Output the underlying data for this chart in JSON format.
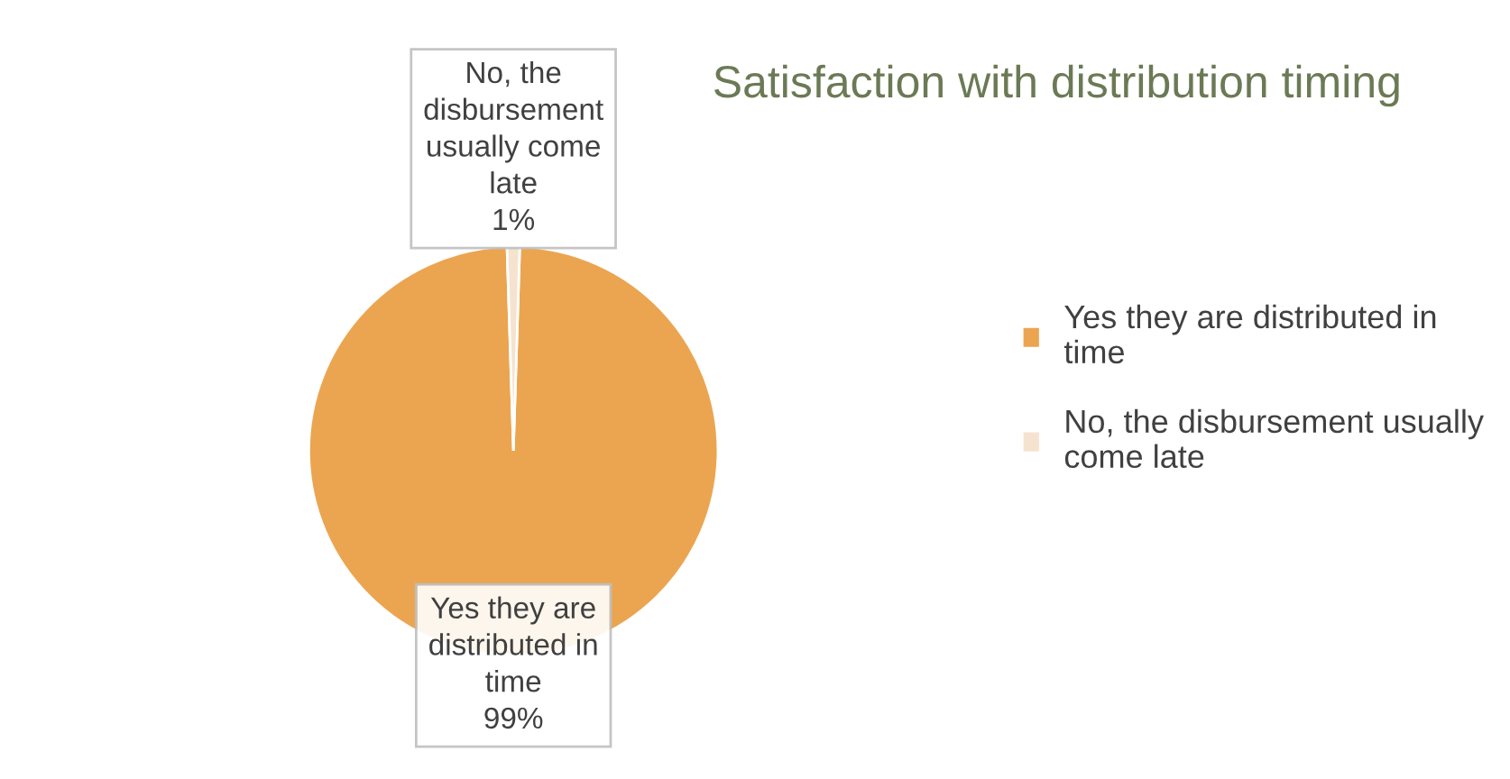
{
  "chart_data": {
    "type": "pie",
    "title": "Satisfaction with distribution timing",
    "categories": [
      "Yes they are distributed in time",
      "No, the disbursement usually come late"
    ],
    "values": [
      99,
      1
    ],
    "colors": [
      "#eba550",
      "#f6e3cf"
    ],
    "value_labels": [
      "99%",
      "1%"
    ],
    "legend": "right"
  }
}
